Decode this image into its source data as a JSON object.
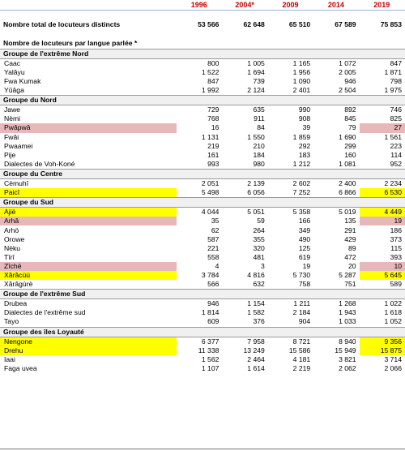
{
  "header": {
    "years": [
      "1996",
      "2004*",
      "2009",
      "2014",
      "2019"
    ]
  },
  "total": {
    "label": "Nombre total de locuteurs distincts",
    "values": [
      "53 566",
      "62 648",
      "65 510",
      "67 589",
      "75 853"
    ]
  },
  "subheading": "Nombre de locuteurs par langue parlée *",
  "highlight_colors": {
    "yellow": "#ffff00",
    "pink": "#e6b8b8"
  },
  "groups": [
    {
      "title": "Groupe de l'extrême Nord",
      "rows": [
        {
          "name": "Caac",
          "values": [
            "800",
            "1 005",
            "1 165",
            "1 072",
            "847"
          ]
        },
        {
          "name": "Yalâyu",
          "values": [
            "1 522",
            "1 694",
            "1 956",
            "2 005",
            "1 871"
          ]
        },
        {
          "name": "Fwa Kumak",
          "values": [
            "847",
            "739",
            "1 090",
            "946",
            "798"
          ]
        },
        {
          "name": "Yûâga",
          "values": [
            "1 992",
            "2 124",
            "2 401",
            "2 504",
            "1 975"
          ]
        }
      ]
    },
    {
      "title": "Groupe du Nord",
      "rows": [
        {
          "name": "Jawe",
          "values": [
            "729",
            "635",
            "990",
            "892",
            "746"
          ]
        },
        {
          "name": "Nèmi",
          "values": [
            "768",
            "911",
            "908",
            "845",
            "825"
          ]
        },
        {
          "name": "Pwâpwâ",
          "values": [
            "16",
            "84",
            "39",
            "79",
            "27"
          ],
          "highlight": "pink"
        },
        {
          "name": "Fwâi",
          "values": [
            "1 131",
            "1 550",
            "1 859",
            "1 690",
            "1 561"
          ]
        },
        {
          "name": "Pwaamei",
          "values": [
            "219",
            "210",
            "292",
            "299",
            "223"
          ]
        },
        {
          "name": "Pije",
          "values": [
            "161",
            "184",
            "183",
            "160",
            "114"
          ]
        },
        {
          "name": "Dialectes de Voh-Koné",
          "values": [
            "993",
            "980",
            "1 212",
            "1 081",
            "952"
          ]
        }
      ]
    },
    {
      "title": "Groupe du Centre",
      "rows": [
        {
          "name": "Cèmuhî",
          "values": [
            "2 051",
            "2 139",
            "2 602",
            "2 400",
            "2 234"
          ]
        },
        {
          "name": "Paicî",
          "values": [
            "5 498",
            "6 056",
            "7 252",
            "6 866",
            "6 530"
          ],
          "highlight": "yellow"
        }
      ]
    },
    {
      "title": "Groupe du Sud",
      "rows": [
        {
          "name": "Ajië",
          "values": [
            "4 044",
            "5 051",
            "5 358",
            "5 019",
            "4 449"
          ],
          "highlight": "yellow"
        },
        {
          "name": "Arhâ",
          "values": [
            "35",
            "59",
            "166",
            "135",
            "19"
          ],
          "highlight": "pink"
        },
        {
          "name": "Arhö",
          "values": [
            "62",
            "264",
            "349",
            "291",
            "186"
          ]
        },
        {
          "name": "Orowe",
          "values": [
            "587",
            "355",
            "490",
            "429",
            "373"
          ]
        },
        {
          "name": "Nèku",
          "values": [
            "221",
            "320",
            "125",
            "89",
            "115"
          ]
        },
        {
          "name": "Tîrî",
          "values": [
            "558",
            "481",
            "619",
            "472",
            "393"
          ]
        },
        {
          "name": "Zîchë",
          "values": [
            "4",
            "3",
            "19",
            "20",
            "10"
          ],
          "highlight": "pink"
        },
        {
          "name": "Xârâcùù",
          "values": [
            "3 784",
            "4 816",
            "5 730",
            "5 287",
            "5 645"
          ],
          "highlight": "yellow"
        },
        {
          "name": "Xârâgùrè",
          "values": [
            "566",
            "632",
            "758",
            "751",
            "589"
          ]
        }
      ]
    },
    {
      "title": "Groupe de l'extrême Sud",
      "rows": [
        {
          "name": "Drubea",
          "values": [
            "946",
            "1 154",
            "1 211",
            "1 268",
            "1 022"
          ]
        },
        {
          "name": "Dialectes de l'extrême sud",
          "values": [
            "1 814",
            "1 582",
            "2 184",
            "1 943",
            "1 618"
          ]
        },
        {
          "name": "Tayo",
          "values": [
            "609",
            "376",
            "904",
            "1 033",
            "1 052"
          ]
        }
      ]
    },
    {
      "title": "Groupe des îles Loyauté",
      "rows": [
        {
          "name": "Nengone",
          "values": [
            "6 377",
            "7 958",
            "8 721",
            "8 940",
            "9 356"
          ],
          "highlight": "yellow"
        },
        {
          "name": "Drehu",
          "values": [
            "11 338",
            "13 249",
            "15 586",
            "15 949",
            "15 875"
          ],
          "highlight": "yellow"
        },
        {
          "name": "Iaai",
          "values": [
            "1 562",
            "2 464",
            "4 181",
            "3 821",
            "3 714"
          ]
        },
        {
          "name": "Faga uvea",
          "values": [
            "1 107",
            "1 614",
            "2 219",
            "2 062",
            "2 066"
          ]
        }
      ]
    }
  ]
}
